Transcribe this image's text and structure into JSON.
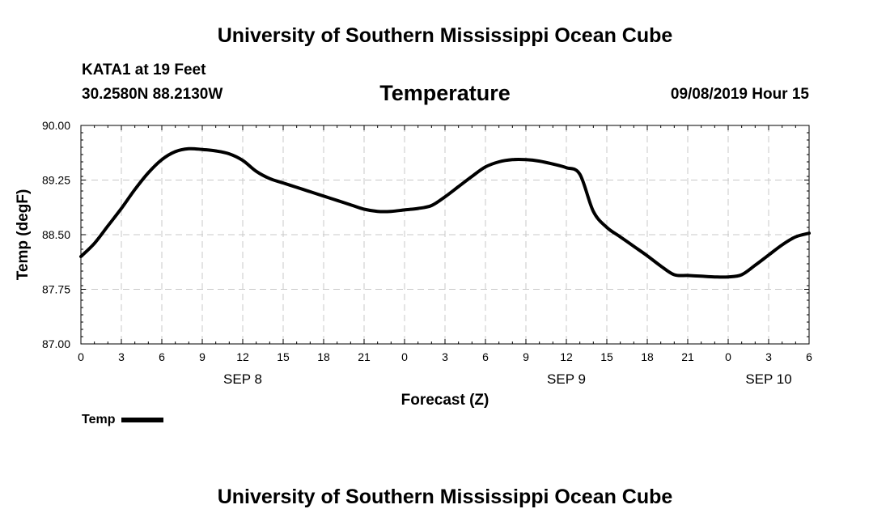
{
  "header": {
    "title": "University of Southern Mississippi Ocean Cube",
    "station": "KATA1 at 19 Feet",
    "coords": "30.2580N 88.2130W",
    "timestamp": "09/08/2019 Hour 15"
  },
  "footer": {
    "title": "University of Southern Mississippi Ocean Cube"
  },
  "legend": {
    "label": "Temp"
  },
  "chart_data": {
    "type": "line",
    "title": "Temperature",
    "xlabel": "Forecast (Z)",
    "ylabel": "Temp (degF)",
    "xlim": [
      0,
      54
    ],
    "ylim": [
      87.0,
      90.0
    ],
    "grid": true,
    "legend_position": "bottom-left",
    "xticks": [
      0,
      3,
      6,
      9,
      12,
      15,
      18,
      21,
      24,
      27,
      30,
      33,
      36,
      39,
      42,
      45,
      48,
      51,
      54
    ],
    "xtick_labels": [
      "0",
      "3",
      "6",
      "9",
      "12",
      "15",
      "18",
      "21",
      "0",
      "3",
      "6",
      "9",
      "12",
      "15",
      "18",
      "21",
      "0",
      "3",
      "6"
    ],
    "yticks": [
      87.0,
      87.75,
      88.5,
      89.25,
      90.0
    ],
    "ytick_labels": [
      "87.00",
      "87.75",
      "88.50",
      "89.25",
      "90.00"
    ],
    "date_labels": [
      {
        "x": 12,
        "label": "SEP 8"
      },
      {
        "x": 36,
        "label": "SEP 9"
      },
      {
        "x": 51,
        "label": "SEP 10"
      }
    ],
    "series": [
      {
        "name": "Temp",
        "color": "#000000",
        "x": [
          0,
          1,
          2,
          3,
          4,
          5,
          6,
          7,
          8,
          9,
          10,
          11,
          12,
          13,
          14,
          15,
          16,
          17,
          18,
          19,
          20,
          21,
          22,
          23,
          24,
          25,
          26,
          27,
          28,
          29,
          30,
          31,
          32,
          33,
          34,
          35,
          36,
          37,
          38,
          39,
          40,
          41,
          42,
          43,
          44,
          45,
          46,
          47,
          48,
          49,
          50,
          51,
          52,
          53,
          54
        ],
        "values": [
          88.2,
          88.38,
          88.62,
          88.86,
          89.12,
          89.35,
          89.53,
          89.64,
          89.68,
          89.67,
          89.65,
          89.61,
          89.52,
          89.37,
          89.27,
          89.21,
          89.15,
          89.09,
          89.03,
          88.97,
          88.91,
          88.85,
          88.82,
          88.82,
          88.84,
          88.86,
          88.9,
          89.02,
          89.16,
          89.3,
          89.43,
          89.5,
          89.53,
          89.53,
          89.51,
          89.47,
          89.42,
          89.33,
          88.82,
          88.6,
          88.47,
          88.34,
          88.21,
          88.07,
          87.95,
          87.94,
          87.93,
          87.92,
          87.92,
          87.95,
          88.08,
          88.22,
          88.36,
          88.47,
          88.52
        ]
      }
    ]
  }
}
